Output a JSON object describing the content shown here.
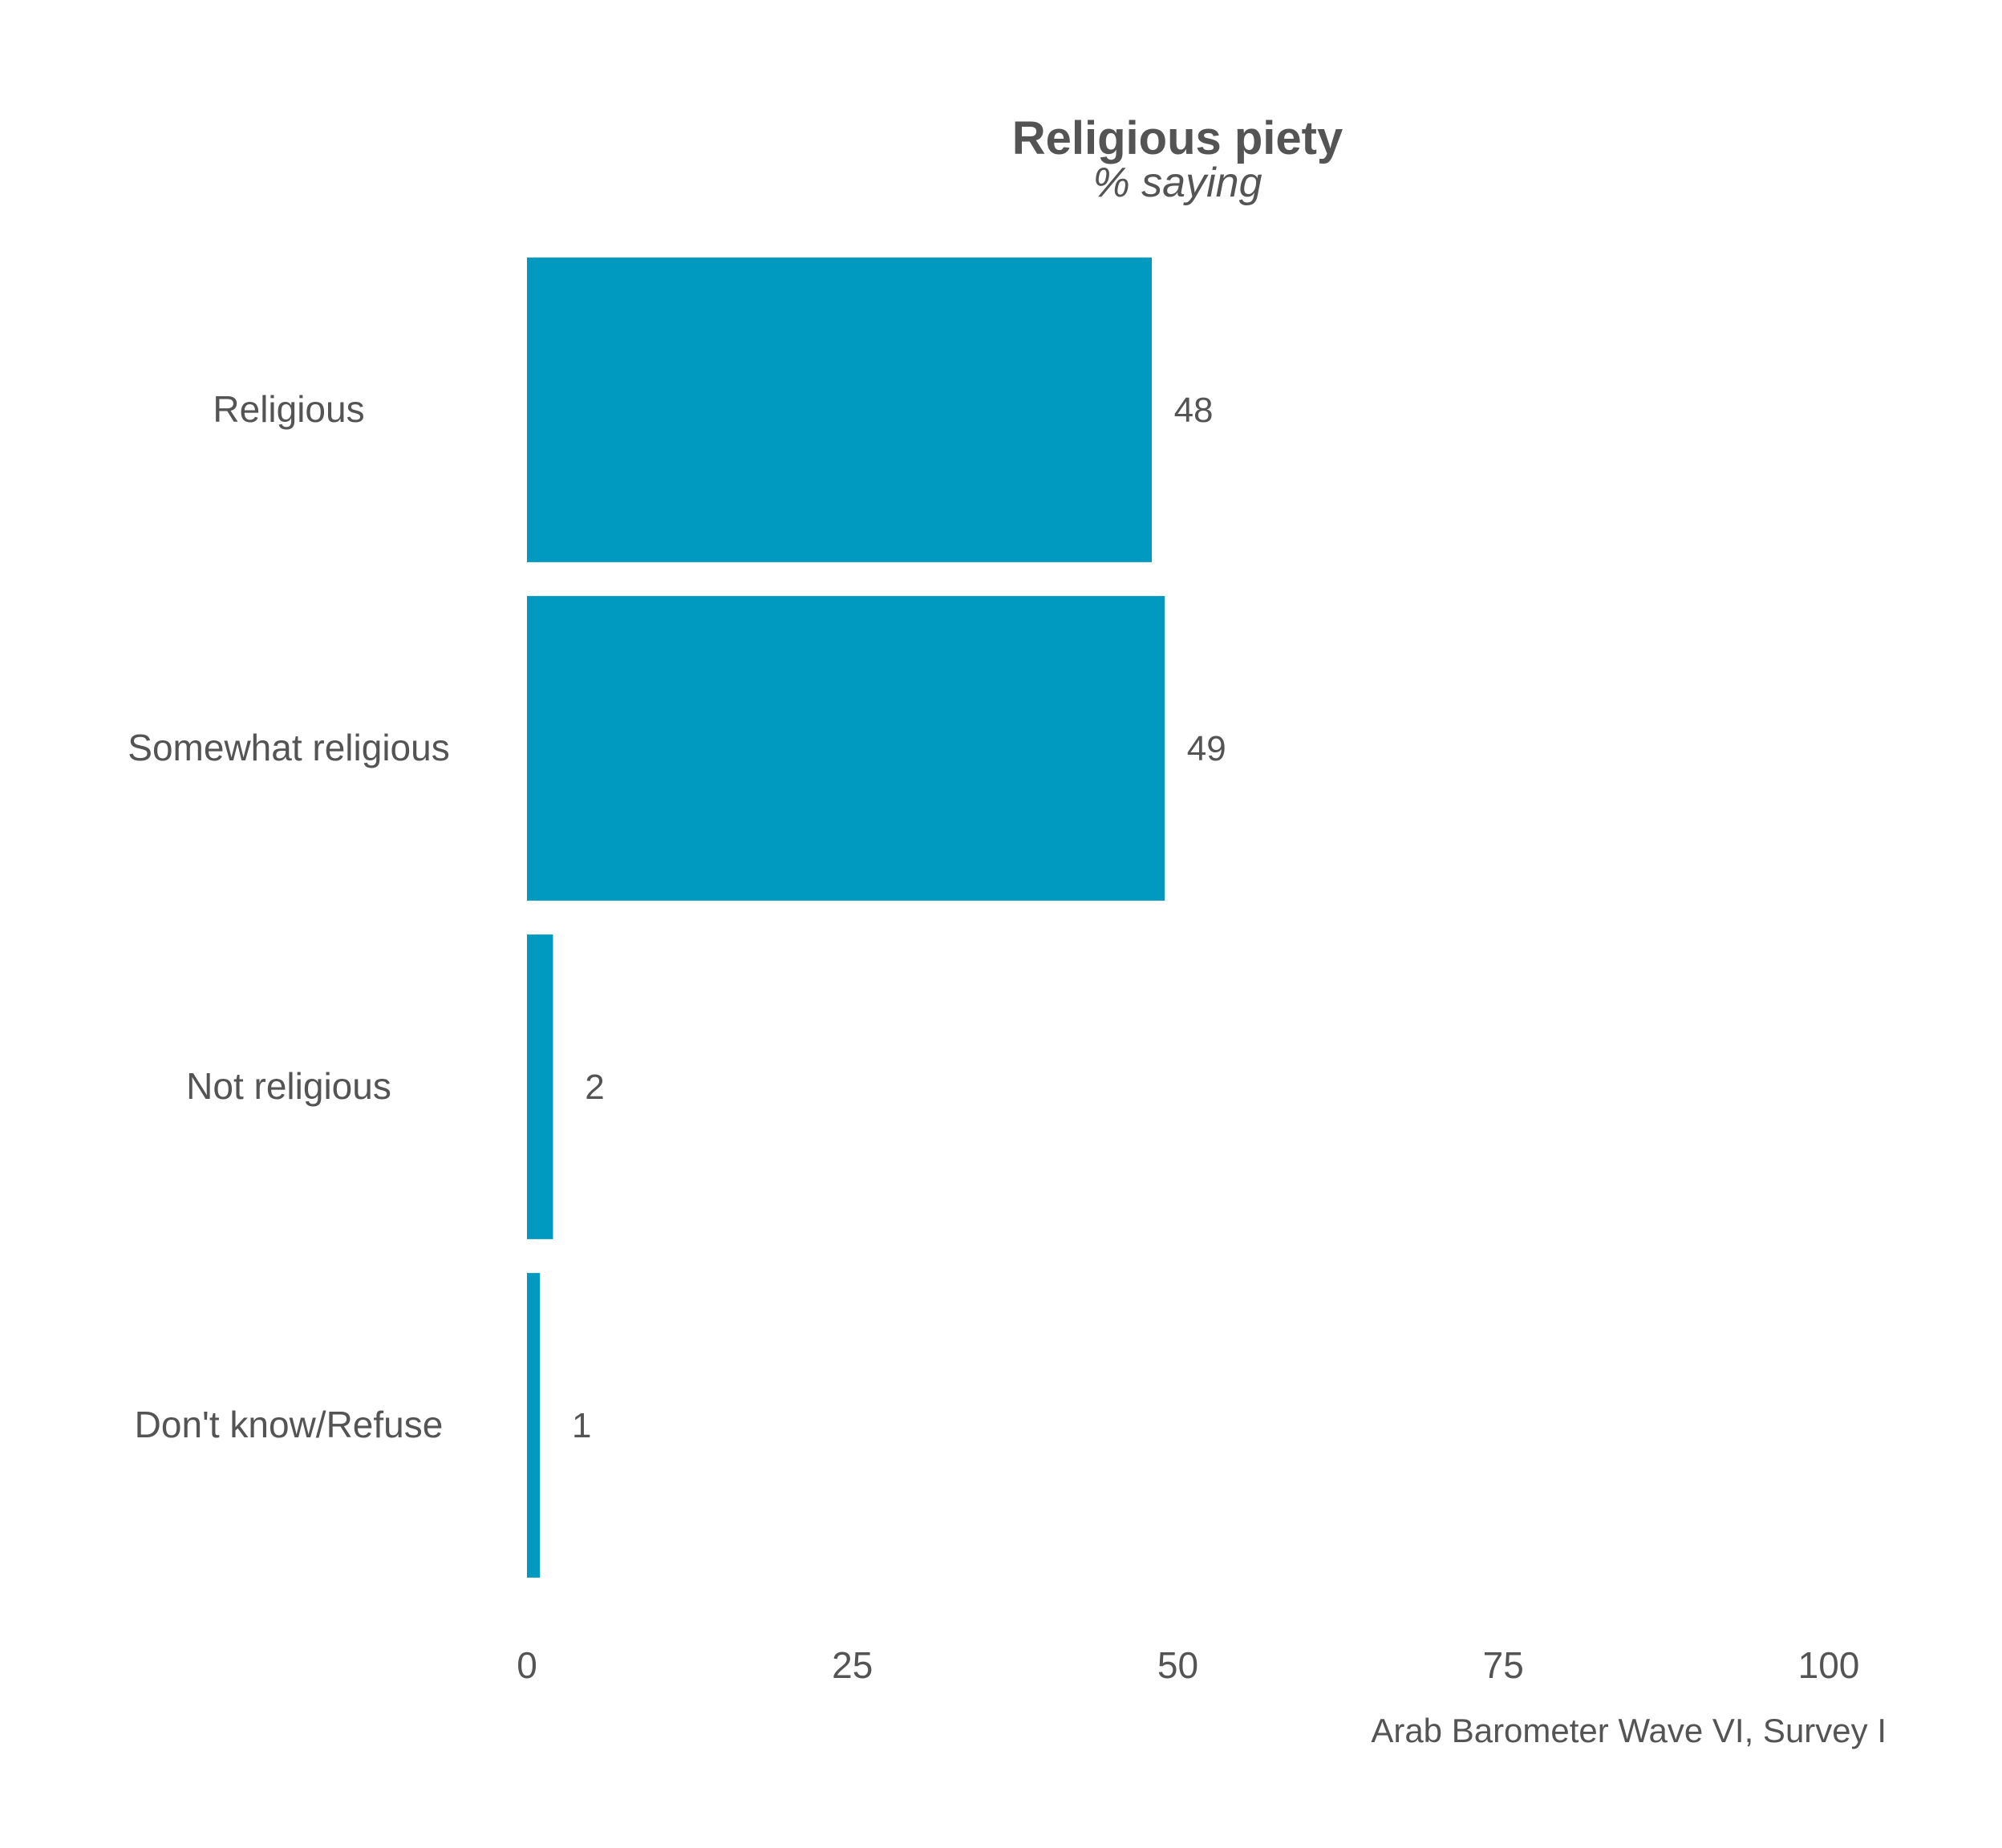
{
  "chart_data": {
    "type": "bar",
    "orientation": "horizontal",
    "title": "Religious piety",
    "subtitle": "% saying",
    "caption": "Arab Barometer Wave VI, Survey I",
    "categories": [
      "Religious",
      "Somewhat religious",
      "Not religious",
      "Don't know/Refuse"
    ],
    "values": [
      48,
      49,
      2,
      1
    ],
    "data_labels": [
      "48",
      "49",
      "2",
      "1"
    ],
    "xlim": [
      0,
      100
    ],
    "xticks": [
      0,
      25,
      50,
      75,
      100
    ],
    "xtick_labels": [
      "0",
      "25",
      "50",
      "75",
      "100"
    ],
    "grid": false,
    "legend": "none",
    "bar_color": "#0099C0",
    "text_color": "#545454"
  }
}
